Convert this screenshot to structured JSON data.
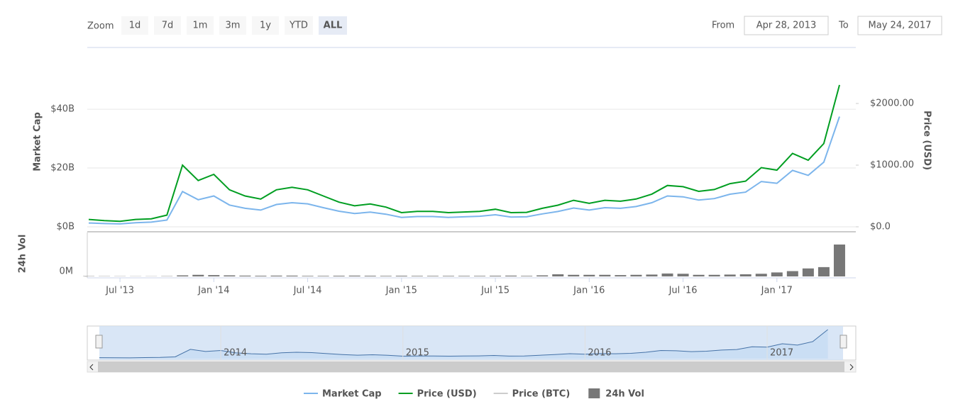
{
  "zoom": {
    "label": "Zoom",
    "buttons": [
      "1d",
      "7d",
      "1m",
      "3m",
      "1y",
      "YTD",
      "ALL"
    ],
    "selected": 6
  },
  "range": {
    "from_label": "From",
    "from": "Apr 28, 2013",
    "to_label": "To",
    "to": "May 24, 2017"
  },
  "chart_data": {
    "type": "line",
    "x": [
      "2013-05",
      "2013-06",
      "2013-07",
      "2013-08",
      "2013-09",
      "2013-10",
      "2013-11",
      "2013-12",
      "2014-01",
      "2014-02",
      "2014-03",
      "2014-04",
      "2014-05",
      "2014-06",
      "2014-07",
      "2014-08",
      "2014-09",
      "2014-10",
      "2014-11",
      "2014-12",
      "2015-01",
      "2015-02",
      "2015-03",
      "2015-04",
      "2015-05",
      "2015-06",
      "2015-07",
      "2015-08",
      "2015-09",
      "2015-10",
      "2015-11",
      "2015-12",
      "2016-01",
      "2016-02",
      "2016-03",
      "2016-04",
      "2016-05",
      "2016-06",
      "2016-07",
      "2016-08",
      "2016-09",
      "2016-10",
      "2016-11",
      "2016-12",
      "2017-01",
      "2017-02",
      "2017-03",
      "2017-04",
      "2017-05"
    ],
    "xlim": [
      "2013-05",
      "2017-06"
    ],
    "xticks": [
      {
        "value": "2013-07",
        "label": "Jul '13"
      },
      {
        "value": "2014-01",
        "label": "Jan '14"
      },
      {
        "value": "2014-07",
        "label": "Jul '14"
      },
      {
        "value": "2015-01",
        "label": "Jan '15"
      },
      {
        "value": "2015-07",
        "label": "Jul '15"
      },
      {
        "value": "2016-01",
        "label": "Jan '16"
      },
      {
        "value": "2016-07",
        "label": "Jul '16"
      },
      {
        "value": "2017-01",
        "label": "Jan '17"
      }
    ],
    "ylabel": "Market Cap",
    "ylim": [
      0,
      61
    ],
    "yticks": [
      {
        "value": 0,
        "label": "$0B"
      },
      {
        "value": 20,
        "label": "$20B"
      },
      {
        "value": 40,
        "label": "$40B"
      }
    ],
    "y2label": "Price (USD)",
    "y2lim": [
      0,
      2908
    ],
    "y2ticks": [
      {
        "value": 0,
        "label": "$0.0"
      },
      {
        "value": 1000,
        "label": "$1000.00"
      },
      {
        "value": 2000,
        "label": "$2000.00"
      }
    ],
    "y3label": "24h Vol",
    "y3lim": [
      0,
      1600
    ],
    "y3ticks": [
      {
        "value": 0,
        "label": "0M"
      }
    ],
    "grid": true,
    "series": [
      {
        "name": "Market Cap",
        "color": "#7cb5ec",
        "axis": "y",
        "values": [
          1.3,
          1.1,
          1.0,
          1.4,
          1.6,
          2.3,
          12,
          9.2,
          10.5,
          7.4,
          6.3,
          5.7,
          7.6,
          8.2,
          7.8,
          6.5,
          5.3,
          4.5,
          5.0,
          4.3,
          3.2,
          3.5,
          3.5,
          3.2,
          3.4,
          3.6,
          4.1,
          3.3,
          3.4,
          4.4,
          5.2,
          6.4,
          5.7,
          6.5,
          6.3,
          6.9,
          8.2,
          10.5,
          10.2,
          9.1,
          9.6,
          11.1,
          11.8,
          15.4,
          14.8,
          19.2,
          17.5,
          22,
          37.5
        ]
      },
      {
        "name": "Price (USD)",
        "color": "#009e21",
        "axis": "y2",
        "values": [
          120,
          100,
          90,
          120,
          130,
          190,
          1000,
          750,
          850,
          600,
          500,
          450,
          600,
          640,
          600,
          500,
          400,
          340,
          370,
          320,
          230,
          250,
          250,
          230,
          240,
          250,
          285,
          230,
          235,
          300,
          350,
          430,
          380,
          430,
          415,
          450,
          530,
          670,
          650,
          575,
          605,
          700,
          740,
          960,
          920,
          1190,
          1080,
          1350,
          2300
        ]
      },
      {
        "name": "Price (BTC)",
        "color": "#cccccc",
        "axis": "y2",
        "visible": false
      },
      {
        "name": "24h Vol",
        "color": "#777777",
        "axis": "y3",
        "type": "bar",
        "values": [
          10,
          8,
          7,
          6,
          6,
          10,
          40,
          60,
          50,
          40,
          30,
          25,
          30,
          30,
          20,
          20,
          25,
          30,
          25,
          20,
          25,
          20,
          20,
          20,
          20,
          20,
          25,
          30,
          20,
          40,
          80,
          60,
          60,
          60,
          50,
          60,
          70,
          110,
          100,
          60,
          60,
          70,
          80,
          100,
          150,
          200,
          300,
          350,
          1200
        ]
      }
    ],
    "navigator": {
      "xticks": [
        {
          "value": "2014-01",
          "label": "2014"
        },
        {
          "value": "2015-01",
          "label": "2015"
        },
        {
          "value": "2016-01",
          "label": "2016"
        },
        {
          "value": "2017-01",
          "label": "2017"
        }
      ]
    }
  }
}
